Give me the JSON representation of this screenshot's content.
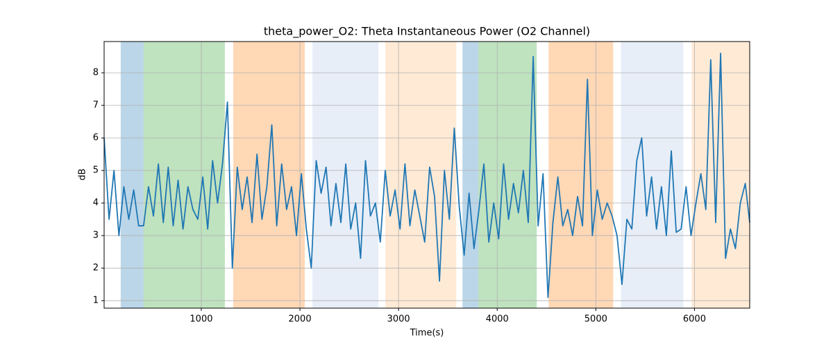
{
  "chart_data": {
    "type": "line",
    "title": "theta_power_O2: Theta Instantaneous Power (O2 Channel)",
    "x_label": "Time(s)",
    "y_label": "dB",
    "x": [
      15,
      65,
      115,
      165,
      215,
      265,
      315,
      365,
      415,
      465,
      515,
      565,
      615,
      665,
      715,
      765,
      815,
      865,
      915,
      965,
      1015,
      1065,
      1115,
      1165,
      1215,
      1265,
      1315,
      1365,
      1415,
      1465,
      1515,
      1565,
      1615,
      1665,
      1715,
      1765,
      1815,
      1865,
      1915,
      1965,
      2015,
      2065,
      2115,
      2165,
      2215,
      2265,
      2315,
      2365,
      2415,
      2465,
      2515,
      2565,
      2615,
      2665,
      2715,
      2765,
      2815,
      2865,
      2915,
      2965,
      3015,
      3065,
      3115,
      3165,
      3215,
      3265,
      3315,
      3365,
      3415,
      3465,
      3515,
      3565,
      3615,
      3665,
      3715,
      3765,
      3815,
      3865,
      3915,
      3965,
      4015,
      4065,
      4115,
      4165,
      4215,
      4265,
      4315,
      4365,
      4415,
      4465,
      4515,
      4565,
      4615,
      4665,
      4715,
      4765,
      4815,
      4865,
      4915,
      4965,
      5015,
      5065,
      5115,
      5165,
      5215,
      5265,
      5315,
      5365,
      5415,
      5465,
      5515,
      5565,
      5615,
      5665,
      5715,
      5765,
      5815,
      5865,
      5915,
      5965,
      6015,
      6065,
      6115,
      6165,
      6215,
      6265,
      6315,
      6365,
      6415,
      6465,
      6515,
      6560
    ],
    "values": [
      6,
      3.5,
      5,
      3,
      4.5,
      3.5,
      4.4,
      3.3,
      3.3,
      4.5,
      3.6,
      5.2,
      3.4,
      5.1,
      3.3,
      4.7,
      3.2,
      4.5,
      3.8,
      3.5,
      4.8,
      3.2,
      5.3,
      4,
      5.2,
      7.1,
      2,
      5.1,
      3.8,
      4.8,
      3.4,
      5.5,
      3.5,
      4.5,
      6.4,
      3.3,
      5.2,
      3.8,
      4.5,
      3,
      4.9,
      3.2,
      2,
      5.3,
      4.3,
      5.1,
      3.3,
      4.6,
      3.4,
      5.2,
      3.2,
      4,
      2.3,
      5.3,
      3.6,
      4,
      2.8,
      5,
      3.6,
      4.4,
      3.2,
      5.2,
      3.3,
      4.4,
      3.6,
      2.8,
      5.1,
      4.2,
      1.6,
      5,
      3.5,
      6.3,
      3.9,
      2.4,
      4.3,
      2.6,
      3.8,
      5.2,
      2.8,
      4,
      2.9,
      5.2,
      3.5,
      4.6,
      3.7,
      5,
      3.4,
      8.5,
      3.3,
      4.9,
      1.1,
      3.4,
      4.8,
      3.3,
      3.8,
      3,
      4.2,
      3.3,
      7.8,
      3,
      4.4,
      3.5,
      4,
      3.6,
      3,
      1.5,
      3.5,
      3.2,
      5.3,
      6,
      3.6,
      4.8,
      3.2,
      4.5,
      3,
      5.6,
      3.1,
      3.2,
      4.5,
      3,
      4,
      4.9,
      3.8,
      8.4,
      3.4,
      8.6,
      2.3,
      3.2,
      2.6,
      4,
      4.6,
      3.4
    ],
    "color": "#1f77b4",
    "spans": [
      {
        "start": 183,
        "end": 415,
        "color": "#1f77b4"
      },
      {
        "start": 415,
        "end": 1239,
        "color": "#2ca02c"
      },
      {
        "start": 1324,
        "end": 2049,
        "color": "#ff7f0e"
      },
      {
        "start": 2127,
        "end": 2796,
        "color": "#aec7e8"
      },
      {
        "start": 2866,
        "end": 3585,
        "color": "#ffbb78"
      },
      {
        "start": 3648,
        "end": 3810,
        "color": "#1f77b4"
      },
      {
        "start": 3810,
        "end": 4401,
        "color": "#2ca02c"
      },
      {
        "start": 4521,
        "end": 5176,
        "color": "#ff7f0e"
      },
      {
        "start": 5254,
        "end": 5887,
        "color": "#aec7e8"
      },
      {
        "start": 5972,
        "end": 6560,
        "color": "#ffbb78"
      }
    ],
    "span_opacity": 0.3,
    "xlim": [
      15,
      6560
    ],
    "xticks": [
      1000,
      2000,
      3000,
      4000,
      5000,
      6000
    ],
    "ylim": [
      0.77,
      8.96
    ],
    "yticks": [
      1,
      2,
      3,
      4,
      5,
      6,
      7,
      8
    ],
    "grid": true
  }
}
